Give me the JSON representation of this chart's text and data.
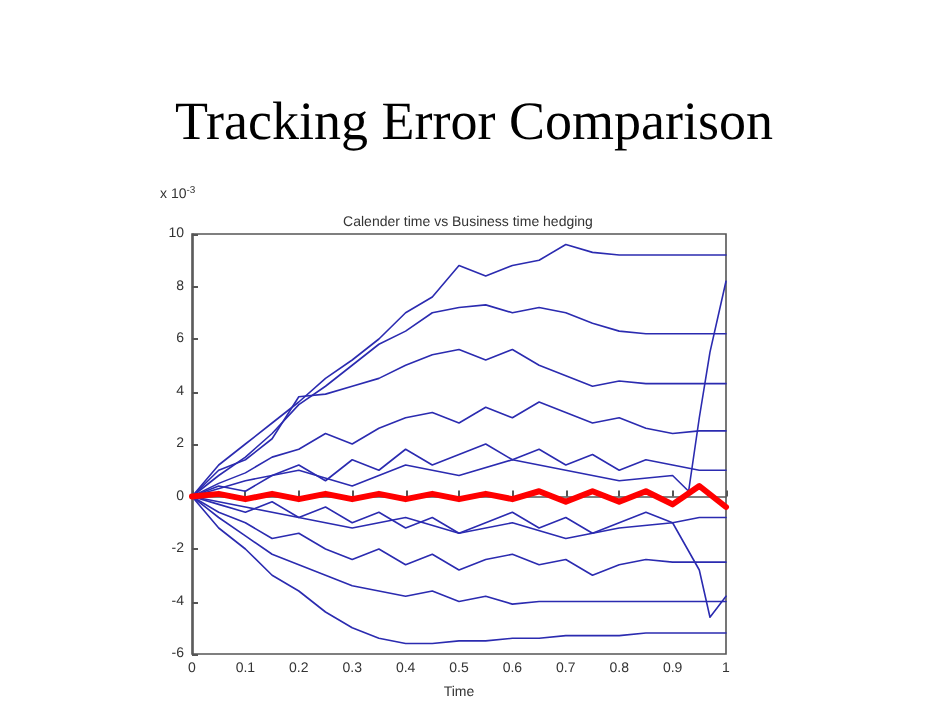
{
  "chart_data": {
    "type": "line",
    "title": "Tracking Error Comparison",
    "subtitle": "Calender time vs Business time hedging",
    "xlabel": "Time",
    "annotations": [
      "x 10$^{-3}$"
    ],
    "x": [
      0,
      0.05,
      0.1,
      0.15,
      0.2,
      0.25,
      0.3,
      0.35,
      0.4,
      0.45,
      0.5,
      0.55,
      0.6,
      0.65,
      0.7,
      0.75,
      0.8,
      0.85,
      0.9,
      0.95,
      1
    ],
    "series": [
      {
        "color": "#2b2bb0",
        "values": [
          0,
          1.2,
          2.0,
          2.8,
          3.6,
          4.5,
          5.2,
          6.0,
          7.0,
          7.6,
          8.8,
          8.4,
          8.8,
          9.0,
          9.6,
          9.3,
          9.2,
          9.2,
          9.2,
          9.2,
          9.2
        ]
      },
      {
        "color": "#2b2bb0",
        "values": [
          0,
          0.8,
          1.5,
          2.4,
          3.5,
          4.2,
          5.0,
          5.8,
          6.3,
          7.0,
          7.2,
          7.3,
          7.0,
          7.2,
          7.0,
          6.6,
          6.3,
          6.2,
          6.2,
          6.2,
          6.2
        ]
      },
      {
        "color": "#2b2bb0",
        "values": [
          0,
          1.0,
          1.4,
          2.2,
          3.8,
          3.9,
          4.2,
          4.5,
          5.0,
          5.4,
          5.6,
          5.2,
          5.6,
          5.0,
          4.6,
          4.2,
          4.4,
          4.3,
          4.3,
          4.3,
          4.3
        ]
      },
      {
        "color": "#2b2bb0",
        "values": [
          0,
          0.5,
          0.9,
          1.5,
          1.8,
          2.4,
          2.0,
          2.6,
          3.0,
          3.2,
          2.8,
          3.4,
          3.0,
          3.6,
          3.2,
          2.8,
          3.0,
          2.6,
          2.4,
          2.5,
          2.5
        ]
      },
      {
        "color": "#2b2bb0",
        "values": [
          0,
          0.4,
          0.2,
          0.8,
          1.2,
          0.6,
          1.4,
          1.0,
          1.8,
          1.2,
          1.6,
          2.0,
          1.4,
          1.8,
          1.2,
          1.6,
          1.0,
          1.4,
          1.2,
          1.0,
          1.0
        ]
      },
      {
        "color": "#2b2bb0",
        "values": [
          0,
          -0.3,
          -0.6,
          -0.2,
          -0.8,
          -0.4,
          -1.0,
          -0.6,
          -1.2,
          -0.8,
          -1.4,
          -1.0,
          -0.6,
          -1.2,
          -0.8,
          -1.4,
          -1.0,
          -0.6,
          -1.0,
          -0.8,
          -0.8
        ]
      },
      {
        "color": "#2b2bb0",
        "values": [
          0,
          -0.6,
          -1.0,
          -1.6,
          -1.4,
          -2.0,
          -2.4,
          -2.0,
          -2.6,
          -2.2,
          -2.8,
          -2.4,
          -2.2,
          -2.6,
          -2.4,
          -3.0,
          -2.6,
          -2.4,
          -2.5,
          -2.5,
          -2.5
        ]
      },
      {
        "color": "#2b2bb0",
        "values": [
          0,
          -0.8,
          -1.5,
          -2.2,
          -2.6,
          -3.0,
          -3.4,
          -3.6,
          -3.8,
          -3.6,
          -4.0,
          -3.8,
          -4.1,
          -4.0,
          -4.0,
          -4.0,
          -4.0,
          -4.0,
          -4.0,
          -4.0,
          -4.0
        ]
      },
      {
        "color": "#2b2bb0",
        "values": [
          0,
          -1.2,
          -2.0,
          -3.0,
          -3.6,
          -4.4,
          -5.0,
          -5.4,
          -5.6,
          -5.6,
          -5.5,
          -5.5,
          -5.4,
          -5.4,
          -5.3,
          -5.3,
          -5.3,
          -5.2,
          -5.2,
          -5.2,
          -5.2
        ]
      },
      {
        "color": "#2b2bb0",
        "x": [
          0,
          0.1,
          0.2,
          0.3,
          0.4,
          0.5,
          0.6,
          0.7,
          0.8,
          0.9,
          0.93,
          0.95,
          0.97,
          1
        ],
        "values": [
          0,
          0.6,
          1.0,
          0.4,
          1.2,
          0.8,
          1.4,
          1.0,
          0.6,
          0.8,
          0.2,
          3.0,
          5.5,
          8.2
        ]
      },
      {
        "color": "#2b2bb0",
        "x": [
          0,
          0.1,
          0.2,
          0.3,
          0.4,
          0.5,
          0.6,
          0.7,
          0.8,
          0.9,
          0.95,
          0.97,
          1
        ],
        "values": [
          0,
          -0.4,
          -0.8,
          -1.2,
          -0.8,
          -1.4,
          -1.0,
          -1.6,
          -1.2,
          -1.0,
          -2.8,
          -4.6,
          -3.8
        ]
      },
      {
        "color": "#ff0000",
        "values": [
          0,
          0.1,
          -0.1,
          0.1,
          -0.1,
          0.1,
          -0.1,
          0.1,
          -0.1,
          0.1,
          -0.1,
          0.1,
          -0.1,
          0.2,
          -0.2,
          0.2,
          -0.2,
          0.2,
          -0.3,
          0.4,
          -0.4
        ]
      }
    ],
    "xlim": [
      0,
      1
    ],
    "xticks": [
      0,
      0.1,
      0.2,
      0.3,
      0.4,
      0.5,
      0.6,
      0.7,
      0.8,
      0.9,
      1
    ],
    "ylim": [
      -6,
      10
    ],
    "yticks": [
      -6,
      -4,
      -2,
      0,
      2,
      4,
      6,
      8,
      10
    ],
    "marker": "none",
    "line_style": "solid"
  }
}
